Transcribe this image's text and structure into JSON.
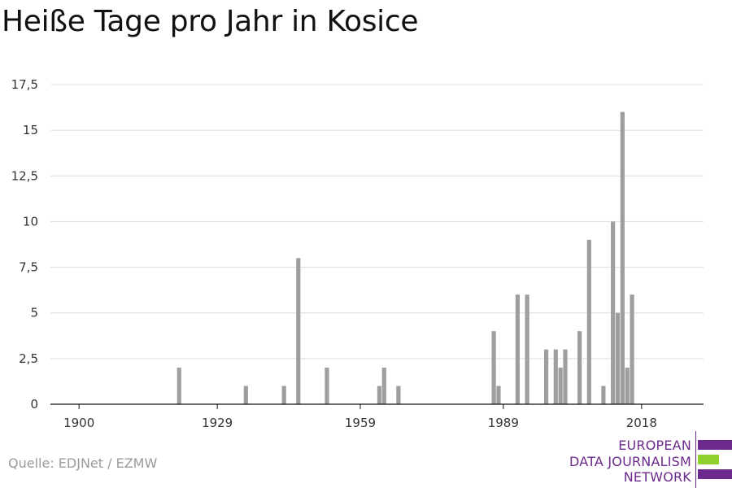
{
  "chart_data": {
    "type": "bar",
    "title": "Heiße Tage pro Jahr in Kosice",
    "xlabel": "",
    "ylabel": "",
    "xlim": [
      1894,
      2031
    ],
    "ylim": [
      0,
      17.5
    ],
    "yticks": [
      0,
      2.5,
      5,
      7.5,
      10,
      12.5,
      15,
      17.5
    ],
    "ytick_labels": [
      "0",
      "2,5",
      "5",
      "7,5",
      "10",
      "12,5",
      "15",
      "17,5"
    ],
    "xticks": [
      1900,
      1929,
      1959,
      1989,
      2018
    ],
    "xtick_labels": [
      "1900",
      "1929",
      "1959",
      "1989",
      "2018"
    ],
    "grid": true,
    "color": "#9e9e9e",
    "x": [
      1921,
      1935,
      1943,
      1946,
      1952,
      1963,
      1964,
      1967,
      1987,
      1988,
      1992,
      1994,
      1998,
      2000,
      2001,
      2002,
      2005,
      2007,
      2010,
      2012,
      2013,
      2014,
      2015,
      2016
    ],
    "values": [
      2,
      1,
      1,
      8,
      2,
      1,
      2,
      1,
      4,
      1,
      6,
      6,
      3,
      3,
      2,
      3,
      4,
      9,
      1,
      10,
      5,
      16,
      2,
      6
    ]
  },
  "source": "Quelle: EDJNet / EZMW",
  "logo": {
    "line1": "EUROPEAN",
    "line2": "DATA JOURNALISM",
    "line3": "NETWORK",
    "purple": "#6b2a8c",
    "green": "#8fd12b"
  }
}
